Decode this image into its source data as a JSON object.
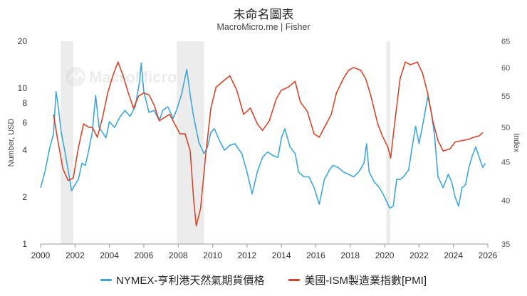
{
  "title": "未命名圖表",
  "subtitle": "MacroMicro.me | Fisher",
  "watermark": "MacroMicro",
  "chart_data": {
    "type": "line",
    "x_ticks": [
      "2000",
      "2002",
      "2004",
      "2006",
      "2008",
      "2010",
      "2012",
      "2014",
      "2016",
      "2018",
      "2020",
      "2022",
      "2024",
      "2026"
    ],
    "xlim": [
      2000,
      2026
    ],
    "recessions": [
      [
        2001.17,
        2001.9
      ],
      [
        2007.92,
        2009.5
      ],
      [
        2020.1,
        2020.33
      ]
    ],
    "left_axis": {
      "label": "Number, USD",
      "scale": "log",
      "lim": [
        1,
        20
      ],
      "ticks": [
        {
          "v": 1,
          "t": "1"
        },
        {
          "v": 2,
          "t": "2"
        },
        {
          "v": 4,
          "t": "4"
        },
        {
          "v": 6,
          "t": "6"
        },
        {
          "v": 8,
          "t": "8"
        },
        {
          "v": 10,
          "t": "10"
        },
        {
          "v": 20,
          "t": "20"
        }
      ]
    },
    "right_axis": {
      "label": "Index",
      "scale": "log",
      "lim": [
        35,
        65
      ],
      "ticks": [
        {
          "v": 35,
          "t": "35"
        },
        {
          "v": 40,
          "t": "40"
        },
        {
          "v": 45,
          "t": "45"
        },
        {
          "v": 50,
          "t": "50"
        },
        {
          "v": 55,
          "t": "55"
        },
        {
          "v": 60,
          "t": "60"
        },
        {
          "v": 65,
          "t": "65"
        }
      ]
    },
    "series": [
      {
        "name": "NYMEX-亨利港天然氣期貨價格",
        "color": "#3fa7d6",
        "axis": "left",
        "points": [
          [
            2000.0,
            2.3
          ],
          [
            2000.25,
            2.9
          ],
          [
            2000.5,
            4.0
          ],
          [
            2000.75,
            5.1
          ],
          [
            2000.9,
            9.5
          ],
          [
            2001.0,
            8.0
          ],
          [
            2001.2,
            5.2
          ],
          [
            2001.4,
            4.0
          ],
          [
            2001.6,
            3.0
          ],
          [
            2001.8,
            2.2
          ],
          [
            2002.0,
            2.4
          ],
          [
            2002.2,
            2.6
          ],
          [
            2002.4,
            3.3
          ],
          [
            2002.6,
            3.2
          ],
          [
            2002.8,
            4.0
          ],
          [
            2003.0,
            5.2
          ],
          [
            2003.2,
            9.0
          ],
          [
            2003.4,
            5.6
          ],
          [
            2003.6,
            5.2
          ],
          [
            2003.8,
            4.8
          ],
          [
            2004.0,
            6.1
          ],
          [
            2004.3,
            5.6
          ],
          [
            2004.6,
            6.5
          ],
          [
            2004.9,
            7.2
          ],
          [
            2005.2,
            6.6
          ],
          [
            2005.5,
            7.6
          ],
          [
            2005.75,
            11.0
          ],
          [
            2005.85,
            14.5
          ],
          [
            2006.0,
            9.5
          ],
          [
            2006.3,
            7.0
          ],
          [
            2006.6,
            7.2
          ],
          [
            2006.9,
            6.2
          ],
          [
            2007.1,
            7.2
          ],
          [
            2007.4,
            7.6
          ],
          [
            2007.7,
            6.4
          ],
          [
            2007.9,
            7.2
          ],
          [
            2008.2,
            9.2
          ],
          [
            2008.5,
            13.2
          ],
          [
            2008.7,
            9.0
          ],
          [
            2008.9,
            6.5
          ],
          [
            2009.2,
            4.5
          ],
          [
            2009.5,
            3.8
          ],
          [
            2009.7,
            4.2
          ],
          [
            2009.9,
            5.2
          ],
          [
            2010.1,
            5.5
          ],
          [
            2010.4,
            4.6
          ],
          [
            2010.7,
            4.0
          ],
          [
            2011.0,
            4.3
          ],
          [
            2011.3,
            4.4
          ],
          [
            2011.7,
            3.8
          ],
          [
            2012.0,
            2.9
          ],
          [
            2012.3,
            2.1
          ],
          [
            2012.6,
            2.9
          ],
          [
            2012.9,
            3.6
          ],
          [
            2013.2,
            3.9
          ],
          [
            2013.5,
            3.7
          ],
          [
            2013.8,
            3.6
          ],
          [
            2014.0,
            4.8
          ],
          [
            2014.2,
            5.5
          ],
          [
            2014.5,
            4.2
          ],
          [
            2014.8,
            3.8
          ],
          [
            2015.0,
            2.9
          ],
          [
            2015.3,
            2.7
          ],
          [
            2015.6,
            2.7
          ],
          [
            2015.9,
            2.3
          ],
          [
            2016.2,
            1.8
          ],
          [
            2016.5,
            2.6
          ],
          [
            2016.8,
            3.0
          ],
          [
            2017.0,
            3.2
          ],
          [
            2017.3,
            3.1
          ],
          [
            2017.6,
            2.9
          ],
          [
            2017.9,
            2.8
          ],
          [
            2018.2,
            2.7
          ],
          [
            2018.5,
            2.9
          ],
          [
            2018.8,
            3.3
          ],
          [
            2018.95,
            4.4
          ],
          [
            2019.1,
            2.9
          ],
          [
            2019.4,
            2.5
          ],
          [
            2019.7,
            2.3
          ],
          [
            2020.0,
            2.0
          ],
          [
            2020.3,
            1.7
          ],
          [
            2020.5,
            1.75
          ],
          [
            2020.7,
            2.6
          ],
          [
            2020.9,
            2.6
          ],
          [
            2021.1,
            2.7
          ],
          [
            2021.4,
            3.0
          ],
          [
            2021.6,
            4.2
          ],
          [
            2021.8,
            5.7
          ],
          [
            2022.0,
            4.4
          ],
          [
            2022.3,
            6.5
          ],
          [
            2022.5,
            8.8
          ],
          [
            2022.7,
            7.2
          ],
          [
            2022.9,
            5.0
          ],
          [
            2023.1,
            2.7
          ],
          [
            2023.4,
            2.3
          ],
          [
            2023.7,
            2.8
          ],
          [
            2023.9,
            2.5
          ],
          [
            2024.1,
            2.0
          ],
          [
            2024.3,
            1.75
          ],
          [
            2024.5,
            2.3
          ],
          [
            2024.7,
            2.4
          ],
          [
            2024.9,
            3.1
          ],
          [
            2025.1,
            3.7
          ],
          [
            2025.3,
            4.2
          ],
          [
            2025.5,
            3.6
          ],
          [
            2025.7,
            3.1
          ],
          [
            2025.85,
            3.3
          ]
        ]
      },
      {
        "name": "美國-ISM製造業指數[PMI]",
        "color": "#d2472c",
        "axis": "right",
        "points": [
          [
            2000.75,
            52.0
          ],
          [
            2001.0,
            48.0
          ],
          [
            2001.3,
            44.0
          ],
          [
            2001.6,
            42.5
          ],
          [
            2001.9,
            42.8
          ],
          [
            2002.2,
            47.0
          ],
          [
            2002.5,
            50.5
          ],
          [
            2002.8,
            50.0
          ],
          [
            2003.0,
            50.0
          ],
          [
            2003.3,
            48.5
          ],
          [
            2003.6,
            51.5
          ],
          [
            2003.9,
            55.5
          ],
          [
            2004.2,
            58.5
          ],
          [
            2004.5,
            61.0
          ],
          [
            2004.8,
            58.5
          ],
          [
            2005.1,
            55.5
          ],
          [
            2005.4,
            53.0
          ],
          [
            2005.7,
            55.0
          ],
          [
            2006.0,
            55.5
          ],
          [
            2006.3,
            55.2
          ],
          [
            2006.6,
            53.5
          ],
          [
            2006.9,
            51.0
          ],
          [
            2007.2,
            51.5
          ],
          [
            2007.5,
            52.0
          ],
          [
            2007.8,
            50.5
          ],
          [
            2008.1,
            49.0
          ],
          [
            2008.4,
            49.0
          ],
          [
            2008.7,
            46.5
          ],
          [
            2008.9,
            40.0
          ],
          [
            2009.05,
            37.0
          ],
          [
            2009.3,
            39.0
          ],
          [
            2009.6,
            46.0
          ],
          [
            2009.9,
            53.0
          ],
          [
            2010.2,
            56.5
          ],
          [
            2010.6,
            57.5
          ],
          [
            2011.0,
            58.5
          ],
          [
            2011.4,
            56.0
          ],
          [
            2011.8,
            52.0
          ],
          [
            2012.2,
            53.0
          ],
          [
            2012.6,
            50.5
          ],
          [
            2012.9,
            49.5
          ],
          [
            2013.3,
            51.0
          ],
          [
            2013.7,
            54.5
          ],
          [
            2014.0,
            56.0
          ],
          [
            2014.4,
            56.5
          ],
          [
            2014.8,
            57.5
          ],
          [
            2015.1,
            54.0
          ],
          [
            2015.5,
            52.5
          ],
          [
            2015.9,
            49.0
          ],
          [
            2016.2,
            48.5
          ],
          [
            2016.6,
            50.5
          ],
          [
            2016.9,
            52.0
          ],
          [
            2017.2,
            55.5
          ],
          [
            2017.6,
            58.0
          ],
          [
            2017.9,
            59.5
          ],
          [
            2018.2,
            60.0
          ],
          [
            2018.6,
            59.5
          ],
          [
            2018.9,
            58.0
          ],
          [
            2019.2,
            55.0
          ],
          [
            2019.6,
            50.5
          ],
          [
            2019.9,
            48.5
          ],
          [
            2020.2,
            47.0
          ],
          [
            2020.35,
            45.5
          ],
          [
            2020.6,
            51.0
          ],
          [
            2020.9,
            58.0
          ],
          [
            2021.2,
            61.0
          ],
          [
            2021.5,
            60.5
          ],
          [
            2021.9,
            61.0
          ],
          [
            2022.2,
            59.0
          ],
          [
            2022.5,
            55.5
          ],
          [
            2022.8,
            51.0
          ],
          [
            2023.1,
            48.0
          ],
          [
            2023.4,
            46.5
          ],
          [
            2023.8,
            46.8
          ],
          [
            2024.1,
            47.8
          ],
          [
            2024.5,
            48.0
          ],
          [
            2024.9,
            48.2
          ],
          [
            2025.2,
            48.5
          ],
          [
            2025.5,
            48.7
          ],
          [
            2025.7,
            49.2
          ]
        ]
      }
    ]
  }
}
